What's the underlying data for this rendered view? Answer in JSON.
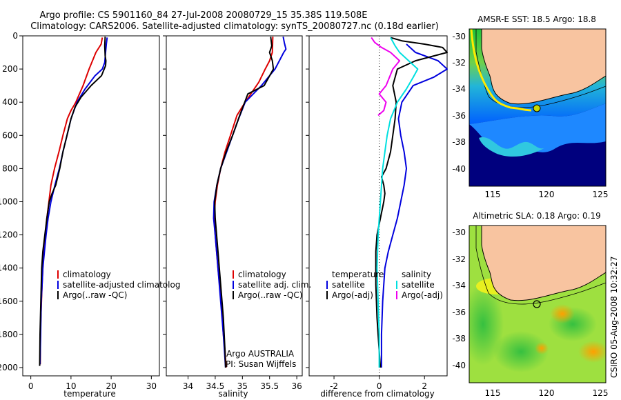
{
  "header": {
    "line1": "Argo profile: CS 5901160_84 27-Jul-2008 20080729_15 35.38S 119.508E",
    "line2": "Climatology: CARS2006. Satellite-adjusted climatology: synTS_20080727.nc (0.18d earlier)"
  },
  "side_label": "CSIRO 05-Aug-2008 10:32:27",
  "colors": {
    "climatology": "#dd0000",
    "satellite": "#0000dd",
    "argo": "#000000",
    "cyan": "#00e0e0",
    "magenta": "#ee00ee",
    "land": "#f8c4a0",
    "ocean_deep": "#00007e"
  },
  "chart_data": [
    {
      "type": "line",
      "xlabel": "temperature",
      "ylabel": "",
      "xlim": [
        -2,
        32
      ],
      "ylim": [
        2050,
        0
      ],
      "xticks": [
        0,
        10,
        20,
        30
      ],
      "yticks": [
        0,
        200,
        400,
        600,
        800,
        1000,
        1200,
        1400,
        1600,
        1800,
        2000
      ],
      "legend": [
        "climatology",
        "satellite-adjusted climatolog",
        "Argo(..raw -QC)"
      ],
      "series": [
        {
          "name": "climatology",
          "color": "#dd0000",
          "x": [
            17.8,
            17.5,
            16.2,
            14.5,
            13,
            11.2,
            10,
            9.1,
            8,
            7,
            5.9,
            5,
            4.5,
            4,
            3.6,
            3.2,
            3,
            2.8,
            2.65,
            2.5,
            2.4,
            2.35
          ],
          "y": [
            10,
            50,
            100,
            200,
            300,
            400,
            450,
            500,
            600,
            700,
            800,
            900,
            1000,
            1100,
            1200,
            1300,
            1400,
            1500,
            1600,
            1700,
            1800,
            1980
          ]
        },
        {
          "name": "satellite-adjusted climatolog",
          "color": "#0000dd",
          "x": [
            19,
            18.8,
            18.6,
            18.4,
            17.8,
            16,
            13.5,
            11.5,
            10,
            9,
            8,
            7.1,
            6,
            5,
            4.3,
            3.8,
            3.4,
            3,
            2.8,
            2.6,
            2.45,
            2.3
          ],
          "y": [
            10,
            50,
            100,
            160,
            200,
            240,
            320,
            400,
            500,
            600,
            700,
            800,
            900,
            1000,
            1100,
            1200,
            1300,
            1400,
            1500,
            1600,
            1800,
            1980
          ]
        },
        {
          "name": "Argo(..raw -QC)",
          "color": "#000000",
          "x": [
            18.5,
            18.4,
            18.5,
            18.7,
            18.6,
            17.6,
            15,
            12.5,
            11,
            10,
            9,
            8,
            7.2,
            6.2,
            5.3,
            4.6,
            4,
            3.5,
            3,
            2.7,
            2.5,
            2.3,
            2.2
          ],
          "y": [
            5,
            60,
            120,
            150,
            180,
            240,
            300,
            370,
            430,
            500,
            600,
            700,
            800,
            900,
            950,
            1000,
            1100,
            1200,
            1300,
            1400,
            1600,
            1800,
            1990
          ]
        }
      ]
    },
    {
      "type": "line",
      "xlabel": "salinity",
      "ylabel": "",
      "xlim": [
        33.6,
        36.1
      ],
      "ylim": [
        2050,
        0
      ],
      "xticks": [
        34,
        34.5,
        35,
        35.5,
        36
      ],
      "yticks": [
        0,
        200,
        400,
        600,
        800,
        1000,
        1200,
        1400,
        1600,
        1800,
        2000
      ],
      "legend": [
        "climatology",
        "satellite adj. clim.",
        "Argo(..raw -QC)"
      ],
      "annotations": [
        "Argo AUSTRALIA",
        "PI: Susan Wijffels"
      ],
      "series": [
        {
          "name": "climatology",
          "color": "#dd0000",
          "x": [
            35.56,
            35.55,
            35.5,
            35.42,
            35.3,
            35.05,
            34.9,
            34.78,
            34.68,
            34.6,
            34.54,
            34.5,
            34.48,
            34.5,
            34.55,
            34.61,
            34.65,
            34.68,
            34.7
          ],
          "y": [
            5,
            100,
            150,
            200,
            280,
            400,
            480,
            600,
            700,
            800,
            900,
            1000,
            1100,
            1200,
            1400,
            1600,
            1800,
            1900,
            2000
          ]
        },
        {
          "name": "satellite adj. clim.",
          "color": "#0000dd",
          "x": [
            35.75,
            35.77,
            35.8,
            35.76,
            35.6,
            35.35,
            35.05,
            34.93,
            34.82,
            34.71,
            34.6,
            34.53,
            34.48,
            34.47,
            34.5,
            34.55,
            34.6,
            34.65,
            34.68,
            34.69
          ],
          "y": [
            5,
            40,
            80,
            100,
            200,
            300,
            400,
            500,
            600,
            700,
            800,
            900,
            1000,
            1100,
            1200,
            1400,
            1600,
            1800,
            1950,
            2000
          ]
        },
        {
          "name": "Argo(..raw -QC)",
          "color": "#000000",
          "x": [
            35.52,
            35.54,
            35.5,
            35.55,
            35.57,
            35.4,
            35.1,
            34.95,
            34.82,
            34.7,
            34.6,
            34.53,
            34.49,
            34.5,
            34.55,
            34.6,
            34.65,
            34.68,
            34.69
          ],
          "y": [
            5,
            60,
            100,
            150,
            200,
            300,
            350,
            480,
            600,
            700,
            800,
            900,
            1000,
            1100,
            1300,
            1500,
            1700,
            1900,
            2000
          ]
        }
      ]
    },
    {
      "type": "line",
      "xlabel": "difference from climatology",
      "ylabel": "",
      "xlim": [
        -3.1,
        3.0
      ],
      "ylim": [
        2050,
        0
      ],
      "xticks": [
        -2,
        0,
        2
      ],
      "yticks": [
        0,
        200,
        400,
        600,
        800,
        1000,
        1200,
        1400,
        1600,
        1800,
        2000
      ],
      "legend_temperature": [
        "temperature",
        "satellite",
        "Argo(-adj)"
      ],
      "legend_salinity": [
        "salinity",
        "satellite",
        "Argo(-adj)"
      ],
      "series": [
        {
          "name": "satellite (temperature)",
          "color": "#0000dd",
          "x": [
            1.2,
            1.6,
            2.6,
            3.0,
            2.4,
            1.5,
            1.0,
            0.85,
            0.95,
            1.1,
            1.2,
            1.1,
            0.95,
            0.8,
            0.6,
            0.4,
            0.25,
            0.15,
            0.1,
            0.1
          ],
          "y": [
            50,
            100,
            150,
            200,
            250,
            300,
            400,
            500,
            600,
            700,
            800,
            900,
            1000,
            1100,
            1200,
            1300,
            1400,
            1600,
            1800,
            2000
          ]
        },
        {
          "name": "Argo(-adj) (temperature)",
          "color": "#000000",
          "x": [
            0.5,
            1.0,
            2.0,
            2.8,
            3.0,
            1.6,
            0.8,
            0.6,
            0.75,
            0.7,
            0.6,
            0.5,
            0.3,
            0.1,
            0.2,
            0.25,
            0.2,
            0.05,
            -0.1,
            -0.15,
            -0.15,
            -0.1,
            0.0,
            0.05
          ],
          "y": [
            10,
            30,
            50,
            70,
            100,
            150,
            200,
            300,
            400,
            500,
            600,
            700,
            800,
            850,
            900,
            950,
            1000,
            1100,
            1200,
            1300,
            1500,
            1700,
            1900,
            2000
          ]
        },
        {
          "name": "satellite (salinity)",
          "color": "#00e0e0",
          "x": [
            0.5,
            0.7,
            0.9,
            1.3,
            1.7,
            1.5,
            1.2,
            0.8,
            0.5,
            0.35,
            0.25,
            0.15,
            0.05,
            -0.05,
            -0.1,
            -0.05,
            0.0,
            0.0
          ],
          "y": [
            10,
            60,
            100,
            150,
            200,
            250,
            320,
            400,
            500,
            600,
            700,
            800,
            1000,
            1200,
            1400,
            1600,
            1800,
            2000
          ]
        },
        {
          "name": "Argo(-adj) (salinity)",
          "color": "#ee00ee",
          "x": [
            -0.35,
            -0.2,
            0.1,
            0.5,
            0.9,
            0.6,
            0.3,
            0.0,
            0.3,
            0.2,
            -0.05
          ],
          "y": [
            10,
            40,
            70,
            100,
            150,
            200,
            300,
            350,
            400,
            450,
            480
          ]
        }
      ]
    }
  ],
  "maps": [
    {
      "title": "AMSR-E SST: 18.5 Argo: 18.8",
      "lon_ticks": [
        "115",
        "120",
        "125"
      ],
      "lat_ticks": [
        "-30",
        "-32",
        "-34",
        "-36",
        "-38",
        "-40"
      ],
      "marker": {
        "lon": 119.5,
        "lat": -35.4
      }
    },
    {
      "title": "Altimetric SLA: 0.18 Argo: 0.19",
      "lon_ticks": [
        "115",
        "120",
        "125"
      ],
      "lat_ticks": [
        "-30",
        "-32",
        "-34",
        "-36",
        "-38",
        "-40"
      ],
      "marker": {
        "lon": 119.5,
        "lat": -35.4
      }
    }
  ]
}
